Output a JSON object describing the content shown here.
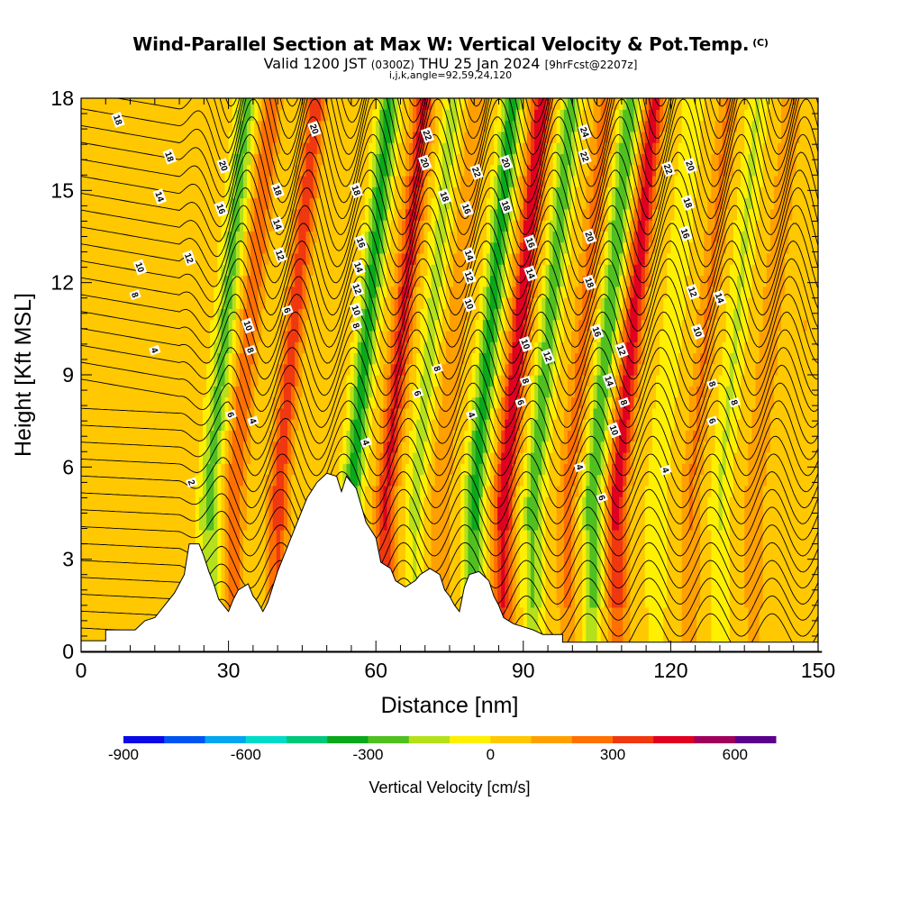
{
  "header": {
    "title": "Wind-Parallel Section at Max W: Vertical Velocity & Pot.Temp.",
    "copyright": "(C)",
    "valid_prefix": "Valid 1200 JST",
    "valid_utc": "(0300Z)",
    "valid_date": "THU 25 Jan 2024",
    "forecast_info": "[9hrFcst@2207z]",
    "params": "i,j,k,angle=92,59,24,120"
  },
  "chart_data": {
    "type": "heatmap",
    "xlabel": "Distance [nm]",
    "ylabel": "Height [Kft MSL]",
    "xlim": [
      0,
      150
    ],
    "ylim": [
      0,
      18
    ],
    "x_ticks": [
      0,
      30,
      60,
      90,
      120,
      150
    ],
    "y_ticks": [
      0,
      3,
      6,
      9,
      12,
      15,
      18
    ],
    "colorbar": {
      "label": "Vertical Velocity [cm/s]",
      "min": -900,
      "max": 700,
      "step": 100,
      "tick_values": [
        -900,
        -600,
        -300,
        0,
        300,
        600
      ],
      "colors": [
        "#0a0ae8",
        "#0055f0",
        "#00a6f0",
        "#00dcc8",
        "#00c87a",
        "#0aa81a",
        "#50c020",
        "#b4e01c",
        "#fff000",
        "#ffc800",
        "#ffa000",
        "#ff7000",
        "#f03810",
        "#e00020",
        "#a0005a",
        "#5a008c"
      ]
    },
    "terrain_profile": [
      [
        0,
        0.35
      ],
      [
        5,
        0.35
      ],
      [
        5,
        0.7
      ],
      [
        11,
        0.7
      ],
      [
        13,
        1.0
      ],
      [
        15,
        1.1
      ],
      [
        17,
        1.5
      ],
      [
        19,
        1.9
      ],
      [
        21,
        2.5
      ],
      [
        22,
        3.5
      ],
      [
        24,
        3.5
      ],
      [
        25,
        3.1
      ],
      [
        26,
        2.6
      ],
      [
        27,
        2.2
      ],
      [
        28,
        1.7
      ],
      [
        29,
        1.5
      ],
      [
        30,
        1.3
      ],
      [
        31,
        1.7
      ],
      [
        32,
        2.0
      ],
      [
        34,
        2.2
      ],
      [
        35,
        1.8
      ],
      [
        36,
        1.6
      ],
      [
        37,
        1.3
      ],
      [
        38,
        1.6
      ],
      [
        39,
        2.1
      ],
      [
        40,
        2.6
      ],
      [
        42,
        3.4
      ],
      [
        44,
        4.2
      ],
      [
        46,
        5.0
      ],
      [
        48,
        5.5
      ],
      [
        50,
        5.8
      ],
      [
        52,
        5.7
      ],
      [
        53,
        5.2
      ],
      [
        54,
        5.7
      ],
      [
        56,
        5.3
      ],
      [
        58,
        4.2
      ],
      [
        60,
        3.7
      ],
      [
        61,
        2.9
      ],
      [
        63,
        2.7
      ],
      [
        64,
        2.3
      ],
      [
        66,
        2.1
      ],
      [
        68,
        2.3
      ],
      [
        69,
        2.5
      ],
      [
        71,
        2.7
      ],
      [
        73,
        2.5
      ],
      [
        74,
        2.0
      ],
      [
        75,
        1.8
      ],
      [
        76,
        1.5
      ],
      [
        77,
        1.3
      ],
      [
        78,
        2.1
      ],
      [
        79,
        2.5
      ],
      [
        81,
        2.6
      ],
      [
        83,
        2.3
      ],
      [
        84,
        1.8
      ],
      [
        85,
        1.5
      ],
      [
        86,
        1.1
      ],
      [
        88,
        0.9
      ],
      [
        90,
        0.8
      ],
      [
        92,
        0.7
      ],
      [
        94,
        0.55
      ],
      [
        98,
        0.55
      ],
      [
        98,
        0.3
      ],
      [
        150,
        0.3
      ]
    ],
    "vertical_velocity_bands": [
      {
        "center": 26,
        "value": -280
      },
      {
        "center": 31,
        "value": 250
      },
      {
        "center": 40,
        "value": 320
      },
      {
        "center": 55,
        "value": -380
      },
      {
        "center": 62,
        "value": 380
      },
      {
        "center": 68,
        "value": -180
      },
      {
        "center": 73,
        "value": 150
      },
      {
        "center": 80,
        "value": -380
      },
      {
        "center": 86,
        "value": 450
      },
      {
        "center": 92,
        "value": -300
      },
      {
        "center": 99,
        "value": 200
      },
      {
        "center": 104,
        "value": -320
      },
      {
        "center": 109,
        "value": 420
      },
      {
        "center": 117,
        "value": -120
      },
      {
        "center": 124,
        "value": 170
      },
      {
        "center": 130,
        "value": -150
      },
      {
        "center": 137,
        "value": 150
      },
      {
        "center": 144,
        "value": 60
      }
    ],
    "contour_labels": [
      {
        "x": 7.5,
        "y": 17.3,
        "text": "18"
      },
      {
        "x": 18,
        "y": 16.1,
        "text": "18"
      },
      {
        "x": 16,
        "y": 14.8,
        "text": "14"
      },
      {
        "x": 22,
        "y": 12.8,
        "text": "12"
      },
      {
        "x": 12,
        "y": 12.5,
        "text": "10"
      },
      {
        "x": 11,
        "y": 11.6,
        "text": "8"
      },
      {
        "x": 15,
        "y": 9.8,
        "text": "4"
      },
      {
        "x": 22.5,
        "y": 5.5,
        "text": "2"
      },
      {
        "x": 29,
        "y": 15.8,
        "text": "20"
      },
      {
        "x": 28.5,
        "y": 14.4,
        "text": "16"
      },
      {
        "x": 34,
        "y": 10.6,
        "text": "10"
      },
      {
        "x": 34.5,
        "y": 9.8,
        "text": "8"
      },
      {
        "x": 30.5,
        "y": 7.7,
        "text": "6"
      },
      {
        "x": 35,
        "y": 7.5,
        "text": "4"
      },
      {
        "x": 40,
        "y": 15.0,
        "text": "18"
      },
      {
        "x": 40,
        "y": 13.9,
        "text": "14"
      },
      {
        "x": 40.5,
        "y": 12.9,
        "text": "12"
      },
      {
        "x": 42,
        "y": 11.1,
        "text": "6"
      },
      {
        "x": 47.5,
        "y": 17.0,
        "text": "20"
      },
      {
        "x": 56,
        "y": 15.0,
        "text": "18"
      },
      {
        "x": 57,
        "y": 13.3,
        "text": "16"
      },
      {
        "x": 56.5,
        "y": 12.5,
        "text": "14"
      },
      {
        "x": 56.2,
        "y": 11.8,
        "text": "12"
      },
      {
        "x": 56,
        "y": 11.1,
        "text": "10"
      },
      {
        "x": 56,
        "y": 10.6,
        "text": "8"
      },
      {
        "x": 58,
        "y": 6.8,
        "text": "4"
      },
      {
        "x": 70.5,
        "y": 16.8,
        "text": "22"
      },
      {
        "x": 70,
        "y": 15.9,
        "text": "20"
      },
      {
        "x": 74,
        "y": 14.8,
        "text": "18"
      },
      {
        "x": 78.5,
        "y": 14.4,
        "text": "16"
      },
      {
        "x": 79,
        "y": 12.9,
        "text": "14"
      },
      {
        "x": 79,
        "y": 12.2,
        "text": "12"
      },
      {
        "x": 79,
        "y": 11.3,
        "text": "10"
      },
      {
        "x": 72.5,
        "y": 9.2,
        "text": "8"
      },
      {
        "x": 68.5,
        "y": 8.4,
        "text": "6"
      },
      {
        "x": 79.5,
        "y": 7.7,
        "text": "4"
      },
      {
        "x": 80.5,
        "y": 15.6,
        "text": "22"
      },
      {
        "x": 86.5,
        "y": 15.9,
        "text": "20"
      },
      {
        "x": 86.5,
        "y": 14.5,
        "text": "18"
      },
      {
        "x": 91.5,
        "y": 13.3,
        "text": "16"
      },
      {
        "x": 91.5,
        "y": 12.3,
        "text": "14"
      },
      {
        "x": 90.5,
        "y": 10.0,
        "text": "10"
      },
      {
        "x": 95,
        "y": 9.6,
        "text": "12"
      },
      {
        "x": 90.5,
        "y": 8.8,
        "text": "8"
      },
      {
        "x": 89.5,
        "y": 8.1,
        "text": "6"
      },
      {
        "x": 101.5,
        "y": 6.0,
        "text": "4"
      },
      {
        "x": 102.5,
        "y": 16.9,
        "text": "24"
      },
      {
        "x": 102.5,
        "y": 16.1,
        "text": "22"
      },
      {
        "x": 103.5,
        "y": 13.5,
        "text": "20"
      },
      {
        "x": 103.5,
        "y": 12.0,
        "text": "18"
      },
      {
        "x": 105,
        "y": 10.4,
        "text": "16"
      },
      {
        "x": 110,
        "y": 9.8,
        "text": "12"
      },
      {
        "x": 107.5,
        "y": 8.8,
        "text": "14"
      },
      {
        "x": 110.5,
        "y": 8.1,
        "text": "8"
      },
      {
        "x": 108.5,
        "y": 7.2,
        "text": "10"
      },
      {
        "x": 106,
        "y": 5.0,
        "text": "6"
      },
      {
        "x": 119,
        "y": 5.9,
        "text": "4"
      },
      {
        "x": 119.5,
        "y": 15.7,
        "text": "22"
      },
      {
        "x": 124,
        "y": 15.8,
        "text": "20"
      },
      {
        "x": 123.5,
        "y": 14.6,
        "text": "18"
      },
      {
        "x": 123,
        "y": 13.6,
        "text": "16"
      },
      {
        "x": 124.5,
        "y": 11.7,
        "text": "12"
      },
      {
        "x": 130,
        "y": 11.5,
        "text": "14"
      },
      {
        "x": 125.5,
        "y": 10.4,
        "text": "10"
      },
      {
        "x": 128.5,
        "y": 8.7,
        "text": "8"
      },
      {
        "x": 128.5,
        "y": 7.5,
        "text": "6"
      },
      {
        "x": 133,
        "y": 8.1,
        "text": "8"
      }
    ]
  }
}
